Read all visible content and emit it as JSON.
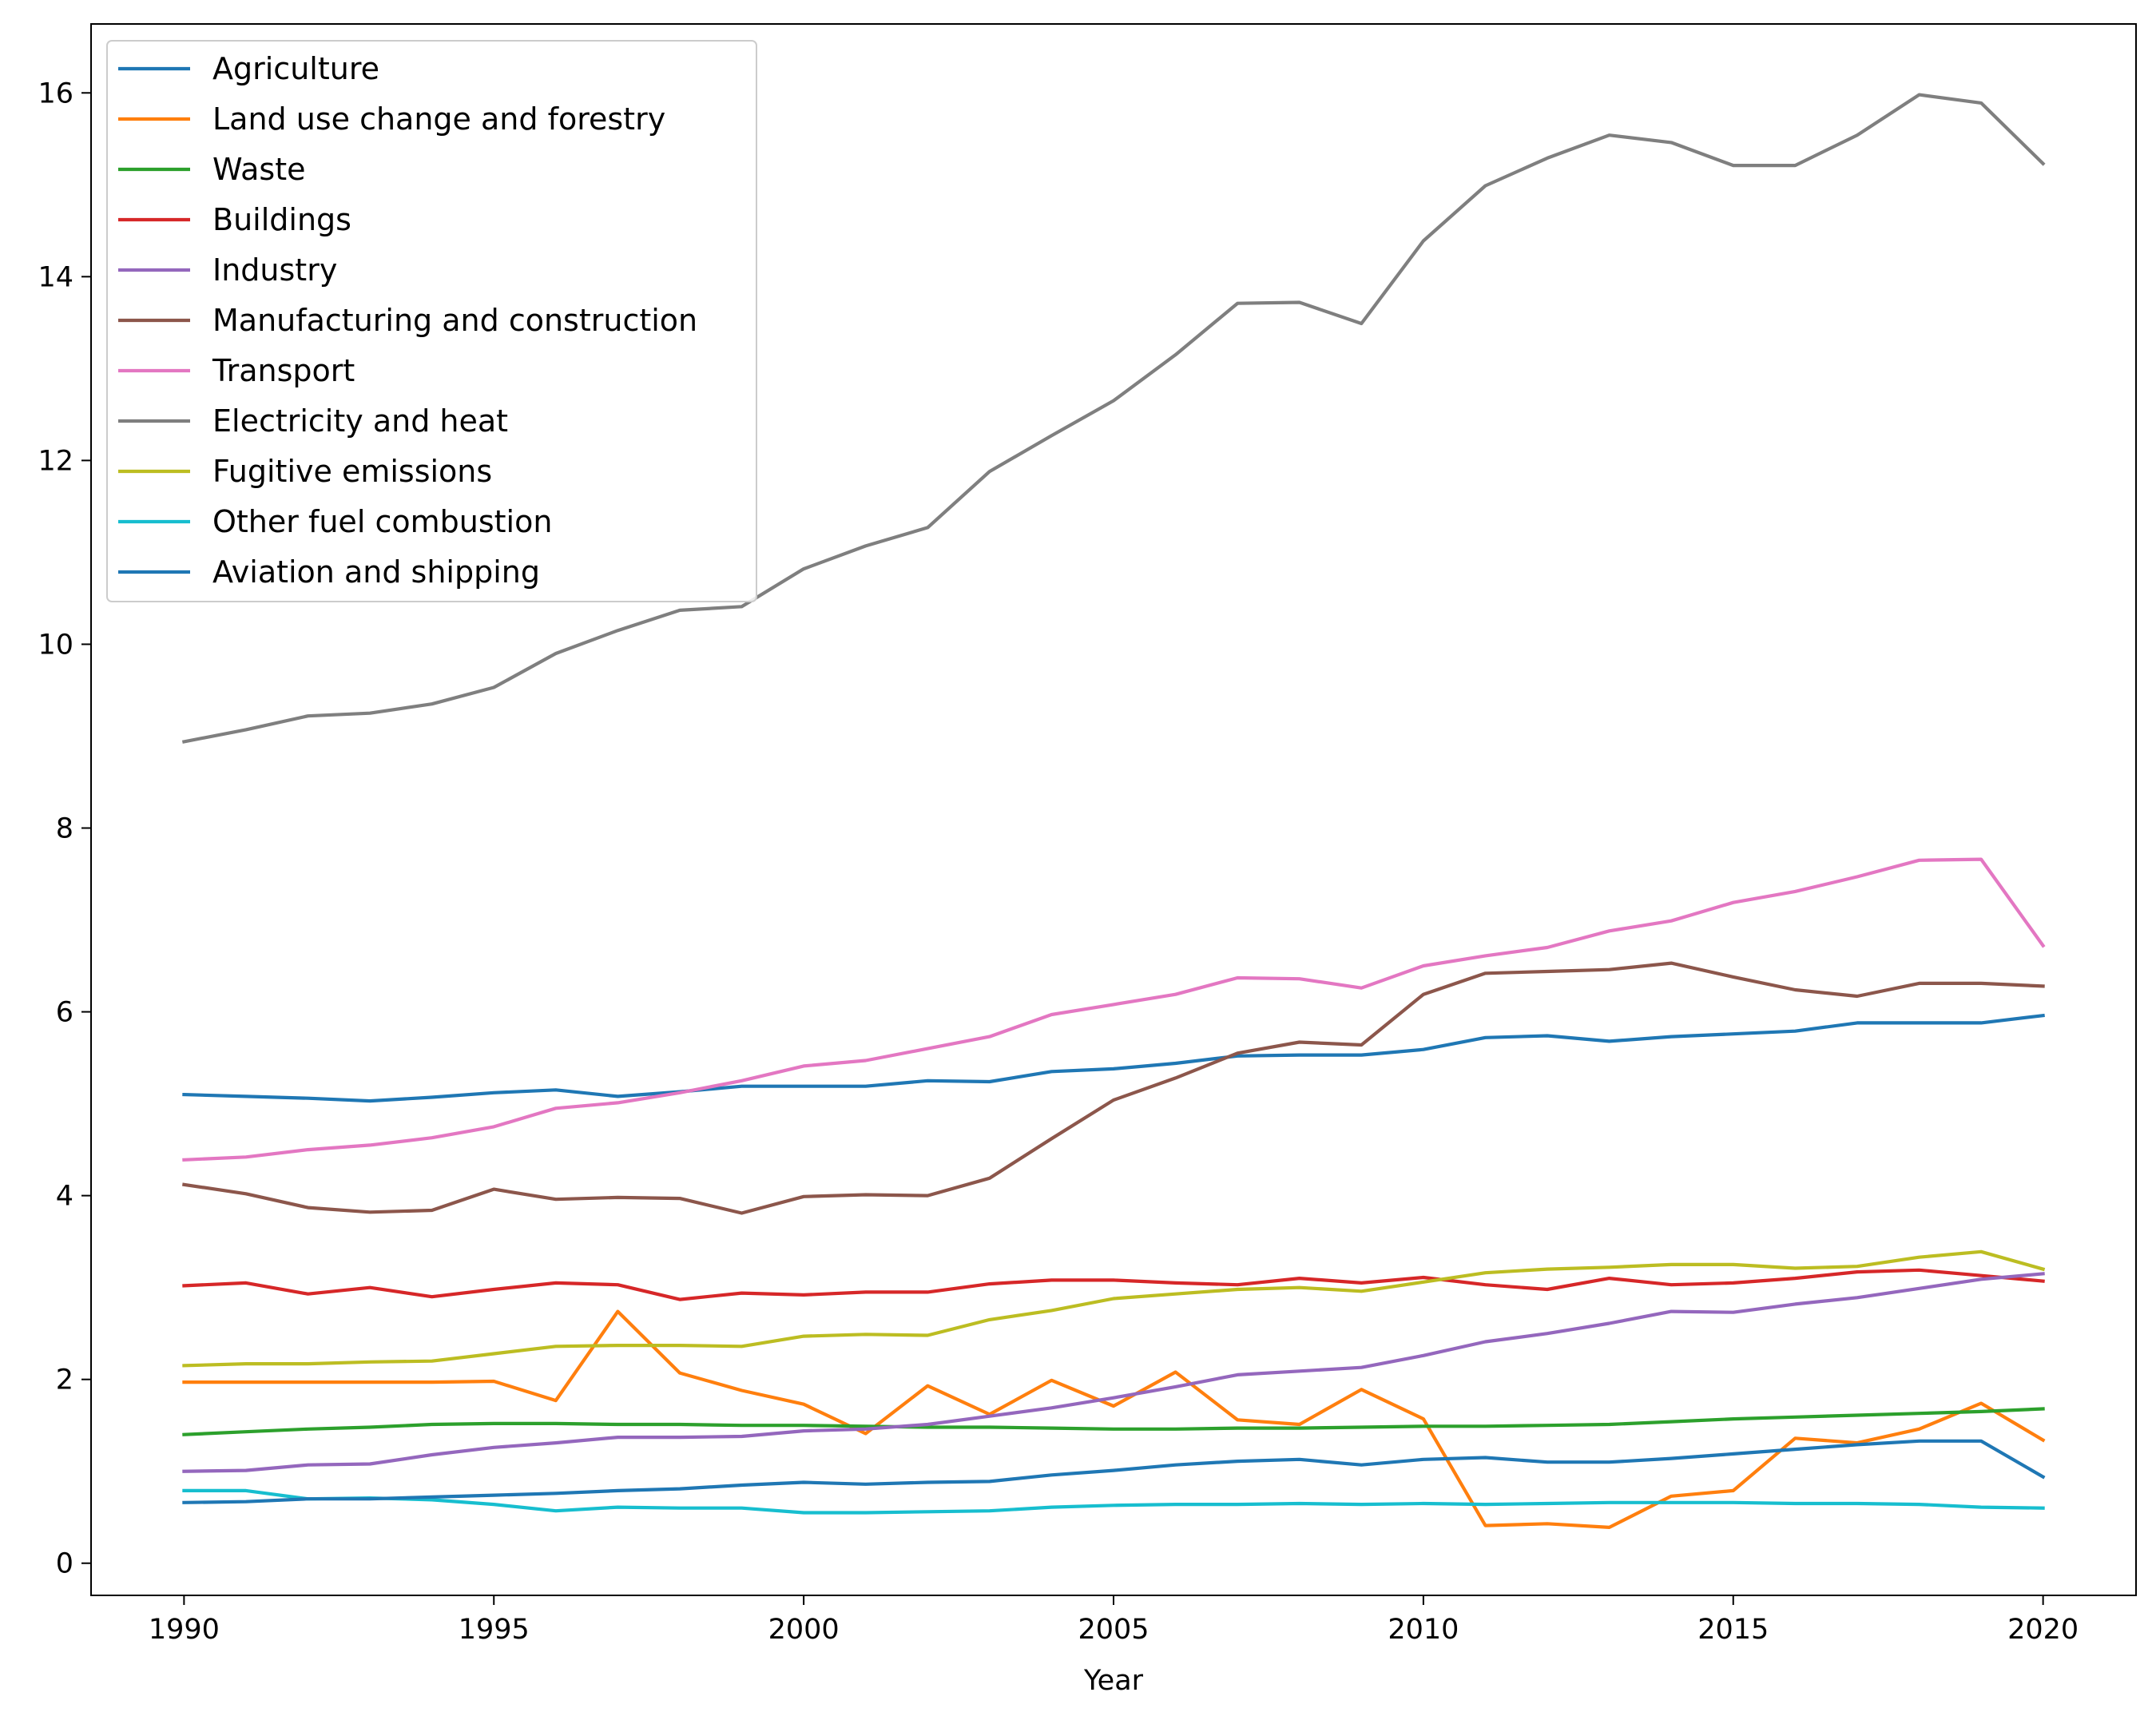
{
  "chart_data": {
    "type": "line",
    "title": "",
    "xlabel": "Year",
    "ylabel": "",
    "xlim": [
      1988.5,
      2021.5
    ],
    "ylim": [
      -0.35,
      16.75
    ],
    "xticks": [
      1990,
      1995,
      2000,
      2005,
      2010,
      2015,
      2020
    ],
    "yticks": [
      0,
      2,
      4,
      6,
      8,
      10,
      12,
      14,
      16
    ],
    "grid": false,
    "legend_position": "top-left",
    "x": [
      1990,
      1991,
      1992,
      1993,
      1994,
      1995,
      1996,
      1997,
      1998,
      1999,
      2000,
      2001,
      2002,
      2003,
      2004,
      2005,
      2006,
      2007,
      2008,
      2009,
      2010,
      2011,
      2012,
      2013,
      2014,
      2015,
      2016,
      2017,
      2018,
      2019,
      2020
    ],
    "series": [
      {
        "name": "Agriculture",
        "color": "#1f77b4",
        "values": [
          5.1,
          5.08,
          5.06,
          5.03,
          5.07,
          5.12,
          5.15,
          5.08,
          5.13,
          5.19,
          5.19,
          5.19,
          5.25,
          5.24,
          5.35,
          5.38,
          5.44,
          5.52,
          5.53,
          5.53,
          5.59,
          5.72,
          5.74,
          5.68,
          5.73,
          5.76,
          5.79,
          5.88,
          5.88,
          5.88,
          5.96
        ]
      },
      {
        "name": "Land use change and forestry",
        "color": "#ff7f0e",
        "values": [
          1.97,
          1.97,
          1.97,
          1.97,
          1.97,
          1.98,
          1.77,
          2.74,
          2.07,
          1.88,
          1.73,
          1.41,
          1.93,
          1.62,
          1.99,
          1.71,
          2.08,
          1.56,
          1.51,
          1.89,
          1.57,
          0.41,
          0.43,
          0.39,
          0.73,
          0.79,
          1.36,
          1.31,
          1.46,
          1.74,
          1.34
        ]
      },
      {
        "name": "Waste",
        "color": "#2ca02c",
        "values": [
          1.4,
          1.43,
          1.46,
          1.48,
          1.51,
          1.52,
          1.52,
          1.51,
          1.51,
          1.5,
          1.5,
          1.49,
          1.48,
          1.48,
          1.47,
          1.46,
          1.46,
          1.47,
          1.47,
          1.48,
          1.49,
          1.49,
          1.5,
          1.51,
          1.54,
          1.57,
          1.59,
          1.61,
          1.63,
          1.65,
          1.68
        ]
      },
      {
        "name": "Buildings",
        "color": "#d62728",
        "values": [
          3.02,
          3.05,
          2.93,
          3.0,
          2.9,
          2.98,
          3.05,
          3.03,
          2.87,
          2.94,
          2.92,
          2.95,
          2.95,
          3.04,
          3.08,
          3.08,
          3.05,
          3.03,
          3.1,
          3.05,
          3.11,
          3.03,
          2.98,
          3.1,
          3.03,
          3.05,
          3.1,
          3.17,
          3.19,
          3.13,
          3.07
        ]
      },
      {
        "name": "Industry",
        "color": "#9467bd",
        "values": [
          1.0,
          1.01,
          1.07,
          1.08,
          1.18,
          1.26,
          1.31,
          1.37,
          1.37,
          1.38,
          1.44,
          1.46,
          1.51,
          1.6,
          1.69,
          1.8,
          1.92,
          2.05,
          2.09,
          2.13,
          2.26,
          2.41,
          2.5,
          2.61,
          2.74,
          2.73,
          2.82,
          2.89,
          2.99,
          3.09,
          3.15
        ]
      },
      {
        "name": "Manufacturing and construction",
        "color": "#8c564b",
        "values": [
          4.12,
          4.02,
          3.87,
          3.82,
          3.84,
          4.07,
          3.96,
          3.98,
          3.97,
          3.81,
          3.99,
          4.01,
          4.0,
          4.19,
          4.62,
          5.04,
          5.28,
          5.55,
          5.67,
          5.64,
          6.19,
          6.42,
          6.44,
          6.46,
          6.53,
          6.38,
          6.24,
          6.17,
          6.31,
          6.31,
          6.28
        ]
      },
      {
        "name": "Transport",
        "color": "#e377c2",
        "values": [
          4.39,
          4.42,
          4.5,
          4.55,
          4.63,
          4.75,
          4.95,
          5.01,
          5.12,
          5.25,
          5.41,
          5.47,
          5.6,
          5.73,
          5.97,
          6.08,
          6.19,
          6.37,
          6.36,
          6.26,
          6.5,
          6.61,
          6.7,
          6.88,
          6.99,
          7.19,
          7.31,
          7.47,
          7.65,
          7.66,
          6.72
        ]
      },
      {
        "name": "Electricity and heat",
        "color": "#7f7f7f",
        "values": [
          8.94,
          9.07,
          9.22,
          9.25,
          9.35,
          9.53,
          9.9,
          10.15,
          10.37,
          10.41,
          10.82,
          11.07,
          11.27,
          11.88,
          12.27,
          12.65,
          13.15,
          13.71,
          13.72,
          13.49,
          14.39,
          14.99,
          15.29,
          15.54,
          15.46,
          15.21,
          15.21,
          15.54,
          15.98,
          15.89,
          15.23
        ]
      },
      {
        "name": "Fugitive emissions",
        "color": "#bcbd22",
        "values": [
          2.15,
          2.17,
          2.17,
          2.19,
          2.2,
          2.28,
          2.36,
          2.37,
          2.37,
          2.36,
          2.47,
          2.49,
          2.48,
          2.65,
          2.75,
          2.88,
          2.93,
          2.98,
          3.0,
          2.96,
          3.06,
          3.16,
          3.2,
          3.22,
          3.25,
          3.25,
          3.21,
          3.23,
          3.33,
          3.39,
          3.2
        ]
      },
      {
        "name": "Other fuel combustion",
        "color": "#17becf",
        "values": [
          0.79,
          0.79,
          0.7,
          0.71,
          0.69,
          0.64,
          0.57,
          0.61,
          0.6,
          0.6,
          0.55,
          0.55,
          0.56,
          0.57,
          0.61,
          0.63,
          0.64,
          0.64,
          0.65,
          0.64,
          0.65,
          0.64,
          0.65,
          0.66,
          0.66,
          0.66,
          0.65,
          0.65,
          0.64,
          0.61,
          0.6
        ]
      },
      {
        "name": "Aviation and shipping",
        "color": "#1f77b4",
        "values": [
          0.66,
          0.67,
          0.7,
          0.7,
          0.72,
          0.74,
          0.76,
          0.79,
          0.81,
          0.85,
          0.88,
          0.86,
          0.88,
          0.89,
          0.96,
          1.01,
          1.07,
          1.11,
          1.13,
          1.07,
          1.13,
          1.15,
          1.1,
          1.1,
          1.14,
          1.19,
          1.24,
          1.29,
          1.33,
          1.33,
          0.94
        ]
      }
    ]
  }
}
